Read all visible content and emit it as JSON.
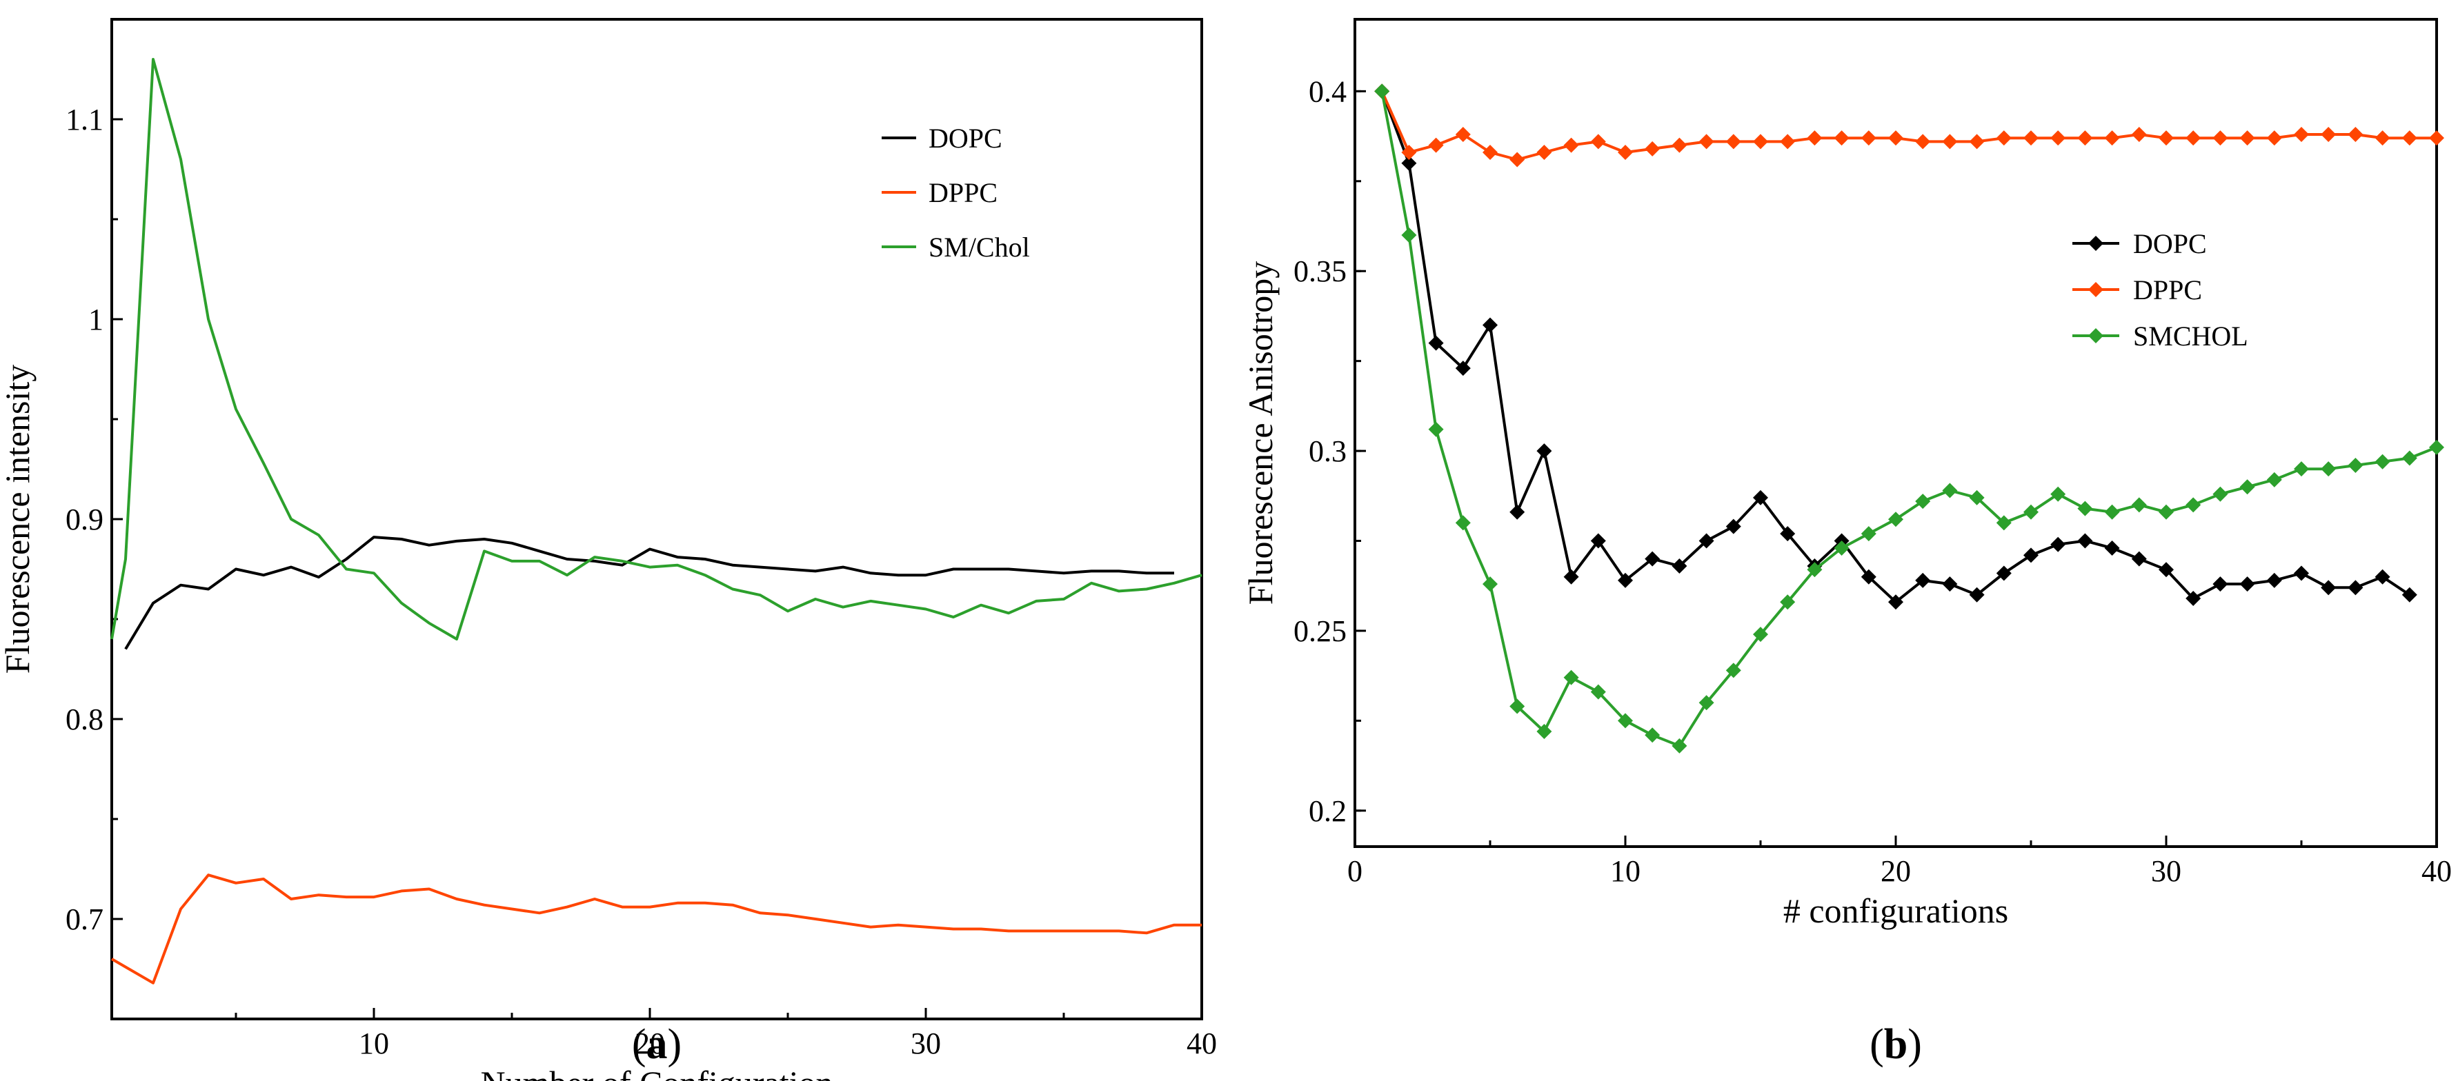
{
  "chart_data": [
    {
      "id": "a",
      "type": "line",
      "panel_label": "a",
      "xlabel": "Number of Configuration",
      "ylabel": "Fluorescence intensity",
      "xlim": [
        0.5,
        40
      ],
      "ylim": [
        0.65,
        1.15
      ],
      "xticks": [
        10,
        20,
        30,
        40
      ],
      "yticks": [
        0.7,
        0.8,
        0.9,
        1,
        1.1
      ],
      "yticklabels": [
        "0.7",
        "0.8",
        "0.9",
        "1",
        "1.1"
      ],
      "markers": false,
      "legend_position": "top-right",
      "series": [
        {
          "name": "DOPC",
          "color": "#000000",
          "x": [
            1,
            2,
            3,
            4,
            5,
            6,
            7,
            8,
            9,
            10,
            11,
            12,
            13,
            14,
            15,
            16,
            17,
            18,
            19,
            20,
            21,
            22,
            23,
            24,
            25,
            26,
            27,
            28,
            29,
            30,
            31,
            32,
            33,
            34,
            35,
            36,
            37,
            38,
            39
          ],
          "y": [
            0.835,
            0.858,
            0.867,
            0.865,
            0.875,
            0.872,
            0.876,
            0.871,
            0.88,
            0.891,
            0.89,
            0.887,
            0.889,
            0.89,
            0.888,
            0.884,
            0.88,
            0.879,
            0.877,
            0.885,
            0.881,
            0.88,
            0.877,
            0.876,
            0.875,
            0.874,
            0.876,
            0.873,
            0.872,
            0.872,
            0.875,
            0.875,
            0.875,
            0.874,
            0.873,
            0.874,
            0.874,
            0.873,
            0.873
          ]
        },
        {
          "name": "DPPC",
          "color": "#ff4500",
          "x": [
            0.5,
            1,
            2,
            3,
            4,
            5,
            6,
            7,
            8,
            9,
            10,
            11,
            12,
            13,
            14,
            15,
            16,
            17,
            18,
            19,
            20,
            21,
            22,
            23,
            24,
            25,
            26,
            27,
            28,
            29,
            30,
            31,
            32,
            33,
            34,
            35,
            36,
            37,
            38,
            39,
            40
          ],
          "y": [
            0.68,
            0.676,
            0.668,
            0.705,
            0.722,
            0.718,
            0.72,
            0.71,
            0.712,
            0.711,
            0.711,
            0.714,
            0.715,
            0.71,
            0.707,
            0.705,
            0.703,
            0.706,
            0.71,
            0.706,
            0.706,
            0.708,
            0.708,
            0.707,
            0.703,
            0.702,
            0.7,
            0.698,
            0.696,
            0.697,
            0.696,
            0.695,
            0.695,
            0.694,
            0.694,
            0.694,
            0.694,
            0.694,
            0.693,
            0.697,
            0.697
          ]
        },
        {
          "name": "SM/Chol",
          "color": "#2ca02c",
          "x": [
            0.5,
            1,
            2,
            3,
            4,
            5,
            6,
            7,
            8,
            9,
            10,
            11,
            12,
            13,
            14,
            15,
            16,
            17,
            18,
            19,
            20,
            21,
            22,
            23,
            24,
            25,
            26,
            27,
            28,
            29,
            30,
            31,
            32,
            33,
            34,
            35,
            36,
            37,
            38,
            39,
            40
          ],
          "y": [
            0.84,
            0.88,
            1.13,
            1.08,
            1.0,
            0.955,
            0.928,
            0.9,
            0.892,
            0.875,
            0.873,
            0.858,
            0.848,
            0.84,
            0.884,
            0.879,
            0.879,
            0.872,
            0.881,
            0.879,
            0.876,
            0.877,
            0.872,
            0.865,
            0.862,
            0.854,
            0.86,
            0.856,
            0.859,
            0.857,
            0.855,
            0.851,
            0.857,
            0.853,
            0.859,
            0.86,
            0.868,
            0.864,
            0.865,
            0.868,
            0.872
          ]
        }
      ]
    },
    {
      "id": "b",
      "type": "line",
      "panel_label": "b",
      "xlabel": "# configurations",
      "ylabel": "Fluorescence Anisotropy",
      "xlim": [
        0,
        40
      ],
      "ylim": [
        0.19,
        0.42
      ],
      "xticks": [
        0,
        10,
        20,
        30,
        40
      ],
      "yticks": [
        0.2,
        0.25,
        0.3,
        0.35,
        0.4
      ],
      "yticklabels": [
        "0.2",
        "0.25",
        "0.3",
        "0.35",
        "0.4"
      ],
      "markers": true,
      "legend_position": "center-right",
      "series": [
        {
          "name": "DOPC",
          "color": "#000000",
          "x": [
            1,
            2,
            3,
            4,
            5,
            6,
            7,
            8,
            9,
            10,
            11,
            12,
            13,
            14,
            15,
            16,
            17,
            18,
            19,
            20,
            21,
            22,
            23,
            24,
            25,
            26,
            27,
            28,
            29,
            30,
            31,
            32,
            33,
            34,
            35,
            36,
            37,
            38,
            39
          ],
          "y": [
            0.4,
            0.38,
            0.33,
            0.323,
            0.335,
            0.283,
            0.3,
            0.265,
            0.275,
            0.264,
            0.27,
            0.268,
            0.275,
            0.279,
            0.287,
            0.277,
            0.268,
            0.275,
            0.265,
            0.258,
            0.264,
            0.263,
            0.26,
            0.266,
            0.271,
            0.274,
            0.275,
            0.273,
            0.27,
            0.267,
            0.259,
            0.263,
            0.263,
            0.264,
            0.266,
            0.262,
            0.262,
            0.265,
            0.26
          ]
        },
        {
          "name": "DPPC",
          "color": "#ff4500",
          "x": [
            1,
            2,
            3,
            4,
            5,
            6,
            7,
            8,
            9,
            10,
            11,
            12,
            13,
            14,
            15,
            16,
            17,
            18,
            19,
            20,
            21,
            22,
            23,
            24,
            25,
            26,
            27,
            28,
            29,
            30,
            31,
            32,
            33,
            34,
            35,
            36,
            37,
            38,
            39,
            40
          ],
          "y": [
            0.4,
            0.383,
            0.385,
            0.388,
            0.383,
            0.381,
            0.383,
            0.385,
            0.386,
            0.383,
            0.384,
            0.385,
            0.386,
            0.386,
            0.386,
            0.386,
            0.387,
            0.387,
            0.387,
            0.387,
            0.386,
            0.386,
            0.386,
            0.387,
            0.387,
            0.387,
            0.387,
            0.387,
            0.388,
            0.387,
            0.387,
            0.387,
            0.387,
            0.387,
            0.388,
            0.388,
            0.388,
            0.387,
            0.387,
            0.387
          ]
        },
        {
          "name": "SMCHOL",
          "color": "#2ca02c",
          "x": [
            1,
            2,
            3,
            4,
            5,
            6,
            7,
            8,
            9,
            10,
            11,
            12,
            13,
            14,
            15,
            16,
            17,
            18,
            19,
            20,
            21,
            22,
            23,
            24,
            25,
            26,
            27,
            28,
            29,
            30,
            31,
            32,
            33,
            34,
            35,
            36,
            37,
            38,
            39,
            40
          ],
          "y": [
            0.4,
            0.36,
            0.306,
            0.28,
            0.263,
            0.229,
            0.222,
            0.237,
            0.233,
            0.225,
            0.221,
            0.218,
            0.23,
            0.239,
            0.249,
            0.258,
            0.267,
            0.273,
            0.277,
            0.281,
            0.286,
            0.289,
            0.287,
            0.28,
            0.283,
            0.288,
            0.284,
            0.283,
            0.285,
            0.283,
            0.285,
            0.288,
            0.29,
            0.292,
            0.295,
            0.295,
            0.296,
            0.297,
            0.298,
            0.301
          ]
        }
      ]
    }
  ]
}
